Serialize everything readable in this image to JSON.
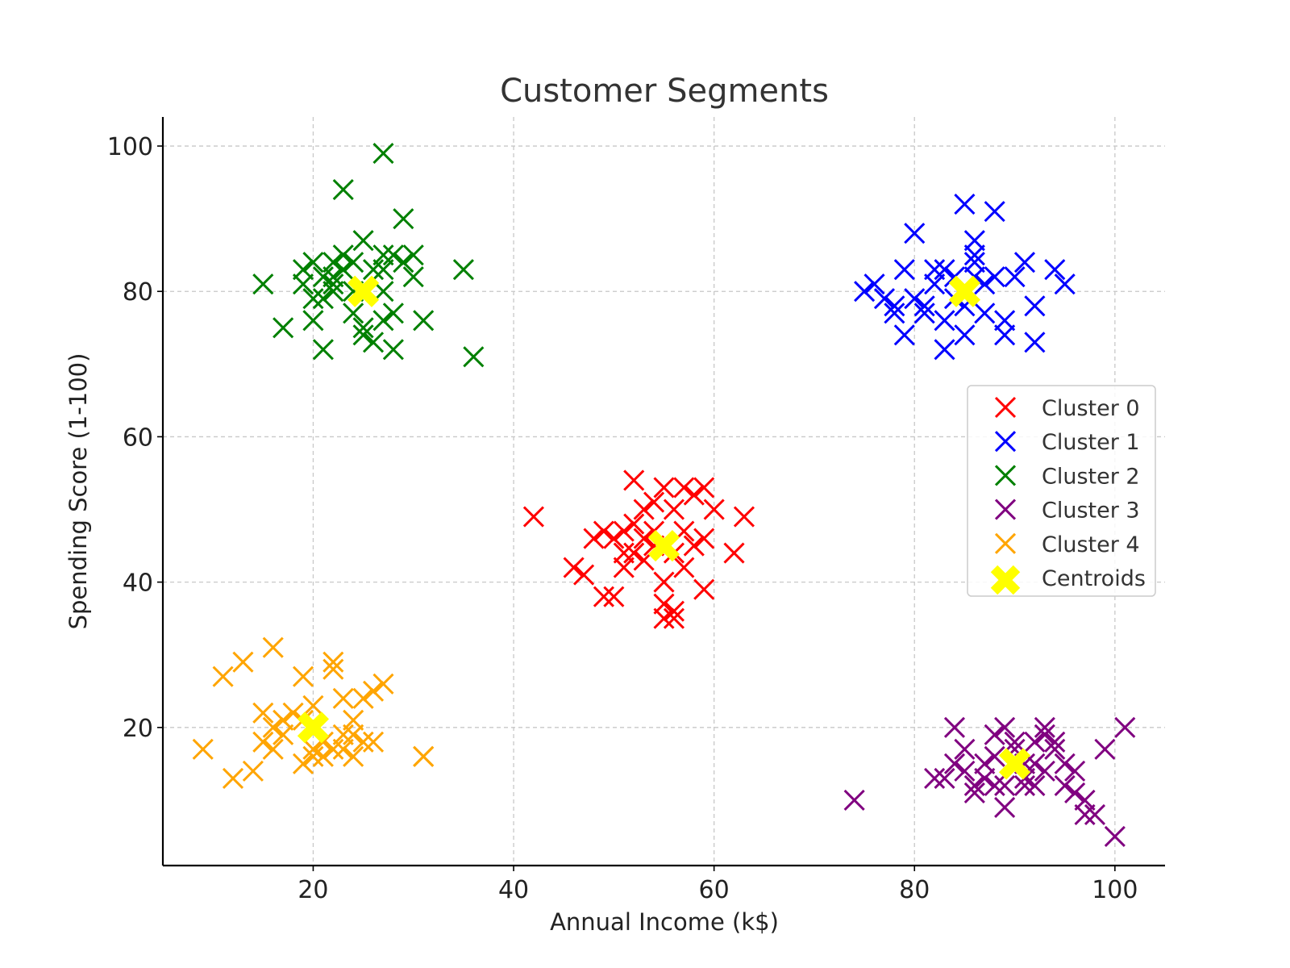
{
  "chart_data": {
    "type": "scatter",
    "title": "Customer Segments",
    "xlabel": "Annual Income (k$)",
    "ylabel": "Spending Score (1-100)",
    "xlim": [
      5,
      105
    ],
    "ylim": [
      1,
      104
    ],
    "xticks": [
      20,
      40,
      60,
      80,
      100
    ],
    "yticks": [
      20,
      40,
      60,
      80,
      100
    ],
    "grid": true,
    "legend_position": "center-right",
    "marker": "x",
    "series": [
      {
        "name": "Cluster 0",
        "color": "#ff0000",
        "points": [
          [
            42,
            49
          ],
          [
            46,
            42
          ],
          [
            47,
            41
          ],
          [
            48,
            46
          ],
          [
            49,
            47
          ],
          [
            50,
            46
          ],
          [
            49,
            38
          ],
          [
            50,
            38
          ],
          [
            51,
            44
          ],
          [
            51,
            47
          ],
          [
            52,
            48
          ],
          [
            52,
            44
          ],
          [
            52,
            54
          ],
          [
            53,
            50
          ],
          [
            53,
            43
          ],
          [
            54,
            45
          ],
          [
            54,
            51
          ],
          [
            54,
            47
          ],
          [
            55,
            53
          ],
          [
            55,
            40
          ],
          [
            55,
            37
          ],
          [
            55,
            35
          ],
          [
            56,
            36
          ],
          [
            56,
            44
          ],
          [
            56,
            50
          ],
          [
            57,
            42
          ],
          [
            57,
            53
          ],
          [
            57,
            47
          ],
          [
            58,
            45
          ],
          [
            58,
            52
          ],
          [
            59,
            53
          ],
          [
            59,
            46
          ],
          [
            59,
            39
          ],
          [
            60,
            50
          ],
          [
            62,
            44
          ],
          [
            63,
            49
          ],
          [
            56,
            35
          ],
          [
            53,
            46
          ],
          [
            51,
            42
          ]
        ]
      },
      {
        "name": "Cluster 1",
        "color": "#0000ff",
        "points": [
          [
            75,
            80
          ],
          [
            76,
            81
          ],
          [
            77,
            79
          ],
          [
            78,
            78
          ],
          [
            79,
            83
          ],
          [
            79,
            74
          ],
          [
            80,
            79
          ],
          [
            80,
            88
          ],
          [
            81,
            77
          ],
          [
            81,
            78
          ],
          [
            82,
            83
          ],
          [
            82,
            81
          ],
          [
            83,
            72
          ],
          [
            83,
            76
          ],
          [
            84,
            82
          ],
          [
            84,
            79
          ],
          [
            85,
            74
          ],
          [
            85,
            78
          ],
          [
            85,
            92
          ],
          [
            86,
            85
          ],
          [
            86,
            82
          ],
          [
            86,
            87
          ],
          [
            87,
            77
          ],
          [
            87,
            81
          ],
          [
            88,
            91
          ],
          [
            88,
            82
          ],
          [
            89,
            76
          ],
          [
            89,
            74
          ],
          [
            90,
            82
          ],
          [
            91,
            84
          ],
          [
            92,
            78
          ],
          [
            92,
            73
          ],
          [
            94,
            83
          ],
          [
            95,
            81
          ],
          [
            83,
            83
          ],
          [
            86,
            84
          ],
          [
            78,
            77
          ]
        ]
      },
      {
        "name": "Cluster 2",
        "color": "#008000",
        "points": [
          [
            15,
            81
          ],
          [
            17,
            75
          ],
          [
            19,
            83
          ],
          [
            19,
            81
          ],
          [
            20,
            84
          ],
          [
            20,
            76
          ],
          [
            21,
            72
          ],
          [
            21,
            82
          ],
          [
            21,
            79
          ],
          [
            22,
            84
          ],
          [
            22,
            82
          ],
          [
            22,
            81
          ],
          [
            23,
            85
          ],
          [
            23,
            83
          ],
          [
            23,
            94
          ],
          [
            24,
            84
          ],
          [
            24,
            77
          ],
          [
            25,
            87
          ],
          [
            25,
            75
          ],
          [
            25,
            74
          ],
          [
            26,
            73
          ],
          [
            26,
            83
          ],
          [
            27,
            80
          ],
          [
            27,
            76
          ],
          [
            27,
            85
          ],
          [
            27,
            83
          ],
          [
            28,
            85
          ],
          [
            28,
            77
          ],
          [
            28,
            72
          ],
          [
            29,
            90
          ],
          [
            29,
            84
          ],
          [
            30,
            82
          ],
          [
            30,
            85
          ],
          [
            31,
            76
          ],
          [
            35,
            83
          ],
          [
            36,
            71
          ],
          [
            27,
            99
          ],
          [
            24,
            80
          ],
          [
            20,
            79
          ],
          [
            22,
            80
          ]
        ]
      },
      {
        "name": "Cluster 3",
        "color": "#800080",
        "points": [
          [
            74,
            10
          ],
          [
            82,
            13
          ],
          [
            83,
            13
          ],
          [
            84,
            20
          ],
          [
            84,
            15
          ],
          [
            85,
            17
          ],
          [
            85,
            14
          ],
          [
            86,
            12
          ],
          [
            86,
            11
          ],
          [
            87,
            15
          ],
          [
            87,
            13
          ],
          [
            88,
            19
          ],
          [
            88,
            16
          ],
          [
            89,
            20
          ],
          [
            89,
            9
          ],
          [
            89,
            12
          ],
          [
            90,
            18
          ],
          [
            90,
            17
          ],
          [
            91,
            13
          ],
          [
            91,
            15
          ],
          [
            91,
            12
          ],
          [
            92,
            12
          ],
          [
            92,
            18
          ],
          [
            93,
            20
          ],
          [
            93,
            14
          ],
          [
            93,
            19
          ],
          [
            94,
            18
          ],
          [
            94,
            17
          ],
          [
            95,
            15
          ],
          [
            95,
            12
          ],
          [
            96,
            11
          ],
          [
            96,
            14
          ],
          [
            97,
            8
          ],
          [
            97,
            10
          ],
          [
            98,
            8
          ],
          [
            99,
            17
          ],
          [
            100,
            5
          ],
          [
            101,
            20
          ],
          [
            88,
            12
          ],
          [
            92,
            15
          ]
        ]
      },
      {
        "name": "Cluster 4",
        "color": "#ffa500",
        "points": [
          [
            9,
            17
          ],
          [
            11,
            27
          ],
          [
            12,
            13
          ],
          [
            13,
            29
          ],
          [
            14,
            14
          ],
          [
            15,
            22
          ],
          [
            15,
            18
          ],
          [
            16,
            31
          ],
          [
            16,
            17
          ],
          [
            16,
            20
          ],
          [
            17,
            21
          ],
          [
            17,
            19
          ],
          [
            18,
            22
          ],
          [
            19,
            27
          ],
          [
            19,
            15
          ],
          [
            19,
            21
          ],
          [
            20,
            17
          ],
          [
            20,
            16
          ],
          [
            20,
            23
          ],
          [
            21,
            16
          ],
          [
            21,
            18
          ],
          [
            22,
            29
          ],
          [
            22,
            28
          ],
          [
            22,
            17
          ],
          [
            23,
            19
          ],
          [
            23,
            24
          ],
          [
            24,
            16
          ],
          [
            24,
            21
          ],
          [
            24,
            19
          ],
          [
            25,
            18
          ],
          [
            25,
            24
          ],
          [
            26,
            18
          ],
          [
            26,
            25
          ],
          [
            27,
            26
          ],
          [
            31,
            16
          ],
          [
            31,
            16
          ],
          [
            20,
            20
          ],
          [
            23,
            17
          ]
        ]
      }
    ],
    "centroids": {
      "name": "Centroids",
      "color": "#ffff00",
      "points": [
        [
          55,
          45
        ],
        [
          85,
          80
        ],
        [
          25,
          80
        ],
        [
          90,
          15
        ],
        [
          20,
          20
        ]
      ]
    },
    "legend": [
      "Cluster 0",
      "Cluster 1",
      "Cluster 2",
      "Cluster 3",
      "Cluster 4",
      "Centroids"
    ]
  }
}
